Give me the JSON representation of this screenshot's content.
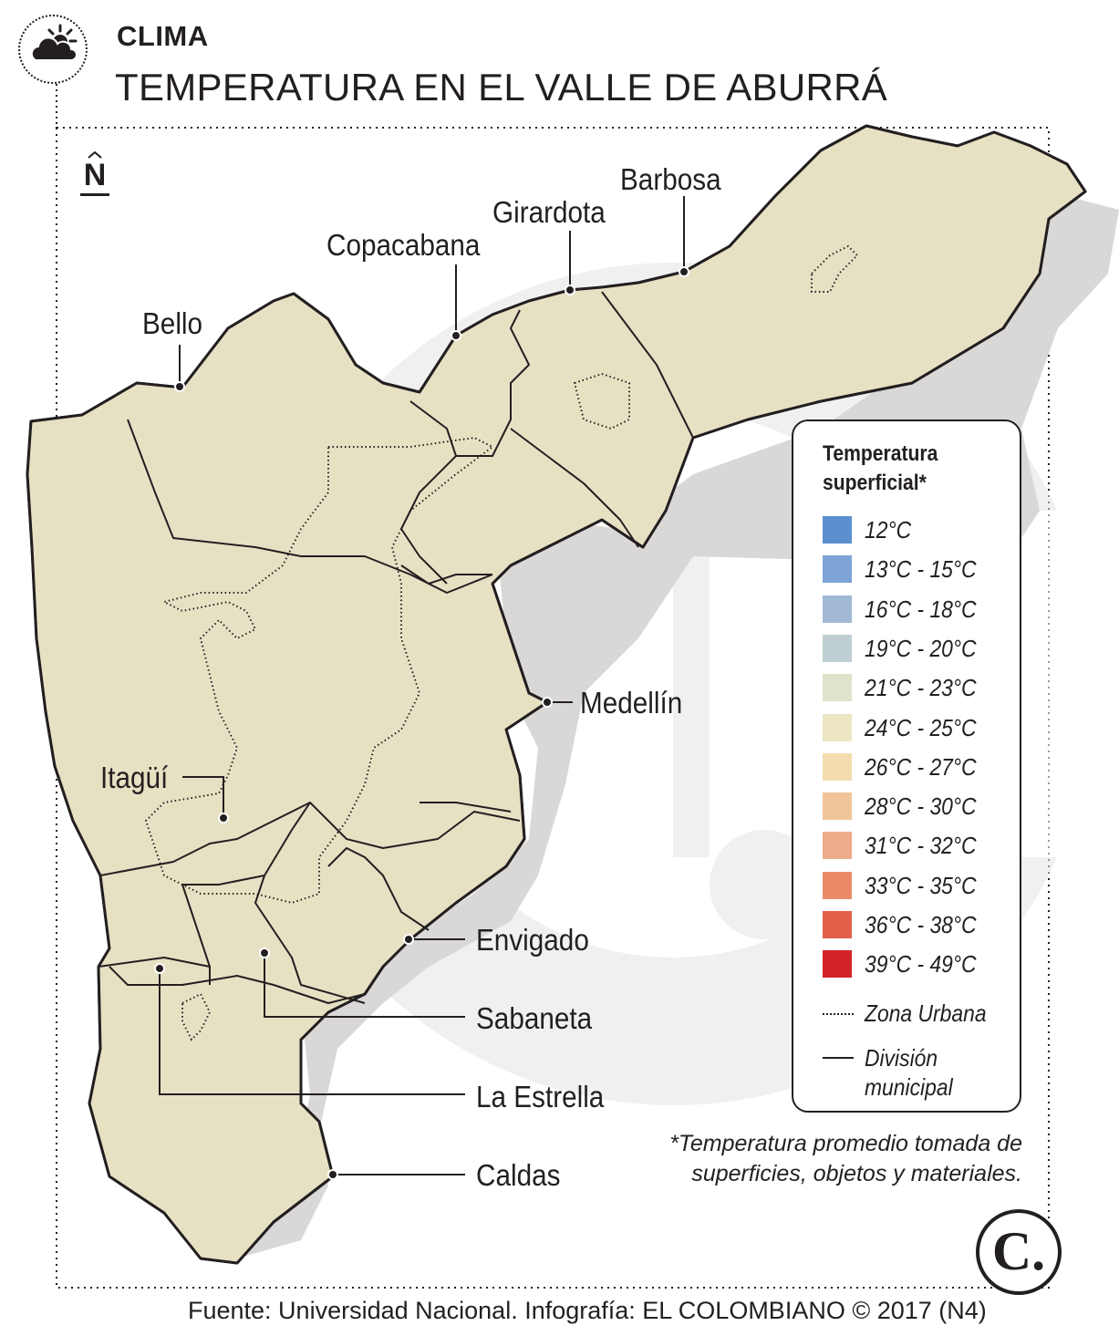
{
  "header": {
    "section": "CLIMA",
    "title": "TEMPERATURA EN EL VALLE DE ABURRÁ",
    "section_icon": "sun-cloud-icon"
  },
  "map": {
    "north_label": "N",
    "municipalities": [
      {
        "name": "Barbosa"
      },
      {
        "name": "Girardota"
      },
      {
        "name": "Copacabana"
      },
      {
        "name": "Bello"
      },
      {
        "name": "Medellín"
      },
      {
        "name": "Itagüí"
      },
      {
        "name": "Envigado"
      },
      {
        "name": "Sabaneta"
      },
      {
        "name": "La Estrella"
      },
      {
        "name": "Caldas"
      }
    ],
    "background_watermark": "C."
  },
  "legend": {
    "title_line1": "Temperatura",
    "title_line2": "superficial*",
    "items": [
      {
        "label": "12°C",
        "color": "#5b8fcf"
      },
      {
        "label": "13°C - 15°C",
        "color": "#7ea3d6"
      },
      {
        "label": "16°C - 18°C",
        "color": "#a2b9d6"
      },
      {
        "label": "19°C - 20°C",
        "color": "#bfcfd4"
      },
      {
        "label": "21°C - 23°C",
        "color": "#dfe3cc"
      },
      {
        "label": "24°C - 25°C",
        "color": "#ede6c3"
      },
      {
        "label": "26°C - 27°C",
        "color": "#f3ddb0"
      },
      {
        "label": "28°C - 30°C",
        "color": "#f0c599"
      },
      {
        "label": "31°C - 32°C",
        "color": "#eeab89"
      },
      {
        "label": "33°C - 35°C",
        "color": "#ec8a68"
      },
      {
        "label": "36°C - 38°C",
        "color": "#e3604a"
      },
      {
        "label": "39°C - 49°C",
        "color": "#d2232b"
      }
    ],
    "urban_zone_label": "Zona Urbana",
    "division_label_line1": "División",
    "division_label_line2": "municipal"
  },
  "footnote_line1": "*Temperatura promedio tomada de",
  "footnote_line2": "superficies, objetos y materiales.",
  "source": "Fuente: Universidad Nacional. Infografía: EL COLOMBIANO © 2017 (N4)",
  "brand_logo_letter": "C."
}
